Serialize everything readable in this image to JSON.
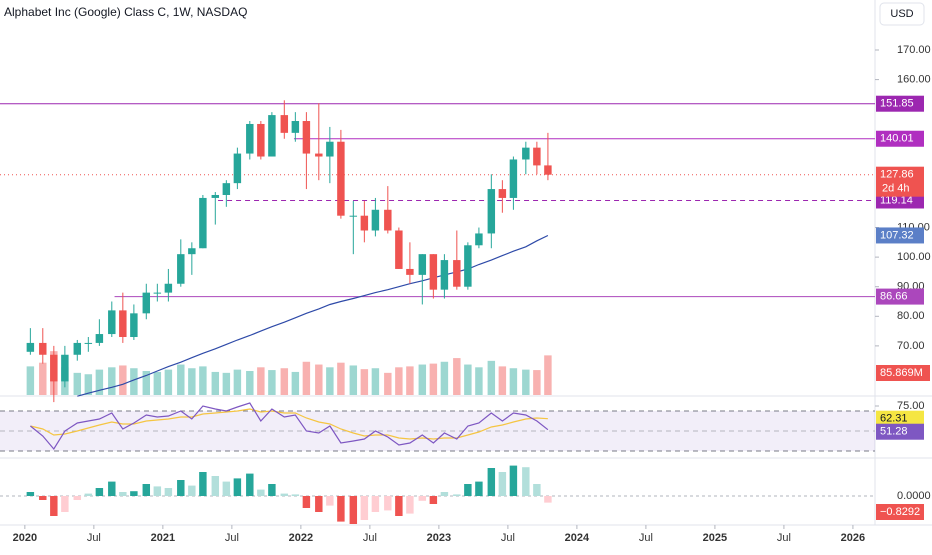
{
  "chart_data": {
    "type": "candlestick",
    "title": "Alphabet Inc (Google) Class C, 1W, NASDAQ",
    "currency": "USD",
    "x": [
      2020.04,
      2020.13,
      2020.21,
      2020.29,
      2020.38,
      2020.46,
      2020.54,
      2020.63,
      2020.71,
      2020.79,
      2020.88,
      2020.96,
      2021.04,
      2021.13,
      2021.21,
      2021.29,
      2021.38,
      2021.46,
      2021.54,
      2021.63,
      2021.71,
      2021.79,
      2021.88,
      2021.96,
      2022.04,
      2022.13,
      2022.21,
      2022.29,
      2022.38,
      2022.46,
      2022.54,
      2022.63,
      2022.71,
      2022.79,
      2022.88,
      2022.96,
      2023.04,
      2023.13,
      2023.21,
      2023.29,
      2023.38,
      2023.46,
      2023.54,
      2023.63,
      2023.71,
      2023.79
    ],
    "open": [
      68,
      71,
      67,
      58,
      67,
      71,
      71,
      74,
      82,
      73,
      81,
      88,
      88,
      91,
      101,
      103,
      120,
      121,
      125,
      135,
      145,
      134,
      148,
      142,
      146,
      135,
      134,
      139,
      114,
      114,
      109,
      116,
      109,
      96,
      94,
      101,
      89,
      99,
      90,
      104,
      108,
      123,
      120,
      133,
      137,
      131
    ],
    "high": [
      76,
      76,
      70,
      70,
      72,
      73,
      79,
      85,
      88,
      84,
      91,
      91,
      96,
      106,
      105,
      121,
      122,
      126,
      137,
      146,
      146,
      149,
      153,
      149,
      149,
      152,
      144,
      143,
      119,
      119,
      120,
      124,
      110,
      105,
      101,
      101,
      101,
      109,
      105,
      110,
      128,
      126,
      134,
      139,
      139,
      142
    ],
    "low": [
      67,
      64,
      51,
      56,
      65,
      68,
      70,
      73,
      71,
      72,
      79,
      85,
      85,
      90,
      94,
      103,
      111,
      117,
      123,
      133,
      133,
      134,
      140,
      139,
      123,
      126,
      125,
      113,
      101,
      105,
      107,
      108,
      96,
      91,
      84,
      86,
      86,
      89,
      89,
      103,
      103,
      115,
      116,
      128,
      128,
      126
    ],
    "close": [
      71,
      67,
      58,
      67,
      71,
      71,
      74,
      82,
      73,
      81,
      88,
      88,
      91,
      101,
      103,
      120,
      121,
      125,
      135,
      145,
      134,
      148,
      142,
      146,
      135,
      134,
      139,
      114,
      114,
      109,
      116,
      109,
      96,
      94,
      101,
      89,
      99,
      90,
      104,
      108,
      123,
      120,
      133,
      137,
      131,
      127.86
    ],
    "up_color": "#26a69a",
    "down_color": "#ef5350",
    "volume": [
      62,
      70,
      95,
      60,
      48,
      45,
      55,
      60,
      64,
      58,
      52,
      50,
      55,
      66,
      58,
      62,
      50,
      48,
      55,
      52,
      60,
      54,
      58,
      50,
      72,
      66,
      60,
      70,
      64,
      56,
      58,
      48,
      60,
      62,
      66,
      68,
      72,
      80,
      66,
      60,
      74,
      62,
      58,
      55,
      54,
      85.869
    ],
    "volume_label": "85.869M",
    "volume_ylim": [
      0,
      130
    ],
    "ma": [
      null,
      null,
      null,
      null,
      53,
      54,
      55,
      56,
      57,
      58.5,
      60,
      61.5,
      63,
      64.5,
      66,
      67.5,
      69,
      70.5,
      72,
      73.5,
      75,
      76.5,
      78,
      79.5,
      81,
      82.5,
      84,
      85,
      86,
      87,
      88,
      89,
      90,
      91,
      92,
      93,
      94,
      95,
      96,
      97.5,
      99,
      100.5,
      102,
      103.5,
      105.5,
      107.32
    ],
    "ma_color": "#2e4aa8",
    "countdown": "2d 4h",
    "levels": [
      {
        "value": 151.85,
        "from": 2019.82,
        "dashed": false,
        "color": "#9c27b0"
      },
      {
        "value": 140.01,
        "from": 2021.95,
        "dashed": false,
        "color": "#b02fc0"
      },
      {
        "value": 119.14,
        "from": 2021.4,
        "dashed": true,
        "color": "#9c27b0"
      },
      {
        "value": 86.66,
        "from": 2020.65,
        "dashed": false,
        "color": "#ab47bc"
      }
    ],
    "xlim": [
      2019.82,
      2026.16
    ],
    "xticks": [
      2020,
      {
        "value": 2020.5,
        "label": "Jul"
      },
      2021,
      {
        "value": 2021.5,
        "label": "Jul"
      },
      2022,
      {
        "value": 2022.5,
        "label": "Jul"
      },
      2023,
      {
        "value": 2023.5,
        "label": "Jul"
      },
      2024,
      {
        "value": 2024.5,
        "label": "Jul"
      },
      2025,
      {
        "value": 2025.5,
        "label": "Jul"
      },
      2026
    ],
    "ylim": [
      53.4,
      186.9
    ],
    "yticks": [
      {
        "value": 170,
        "label": "170.00"
      },
      {
        "value": 160,
        "label": "160.00"
      },
      {
        "value": 110,
        "label": "110.00"
      },
      {
        "value": 100,
        "label": "100.00"
      },
      {
        "value": 90,
        "label": "90.00"
      },
      {
        "value": 80,
        "label": "80.00"
      },
      {
        "value": 70,
        "label": "70.00"
      }
    ],
    "rsi": [
      55,
      45,
      32,
      50,
      58,
      60,
      62,
      68,
      52,
      58,
      66,
      64,
      65,
      70,
      62,
      75,
      72,
      70,
      74,
      78,
      60,
      72,
      64,
      66,
      50,
      48,
      55,
      38,
      40,
      42,
      50,
      44,
      36,
      38,
      46,
      38,
      48,
      42,
      55,
      58,
      68,
      60,
      68,
      66,
      60,
      51.28
    ],
    "rsi_signal": [
      55,
      52,
      46,
      47,
      50,
      53,
      56,
      59,
      57,
      57,
      60,
      61,
      62,
      64,
      64,
      67,
      68,
      69,
      70,
      72,
      69,
      70,
      68,
      68,
      63,
      59,
      57,
      52,
      48,
      45,
      46,
      46,
      43,
      42,
      43,
      42,
      43,
      43,
      46,
      49,
      54,
      56,
      59,
      62,
      63,
      62.31
    ],
    "rsi_ylim": [
      25,
      83
    ],
    "rsi_band": [
      30,
      70
    ],
    "rsi_mid": 50,
    "rsi_ticks": [
      {
        "value": 75,
        "label": "75.00"
      }
    ],
    "macd_hist": [
      0.5,
      -0.5,
      -2.5,
      -2,
      -0.5,
      0.3,
      1,
      1.8,
      0.5,
      0.6,
      1.5,
      1.2,
      1,
      2,
      1.3,
      3,
      2.5,
      1.8,
      2.2,
      2.8,
      0.8,
      1.5,
      0.3,
      0.2,
      -1.5,
      -2,
      -1.2,
      -3.2,
      -3.5,
      -3,
      -2,
      -1.8,
      -2.5,
      -2.2,
      -0.6,
      -1,
      0.5,
      0.2,
      1.5,
      1.8,
      3.5,
      3,
      3.8,
      3.6,
      1.5,
      -0.8292
    ],
    "macd_last_label": "−0.8292",
    "macd_ylim": [
      -4.5,
      4.5
    ],
    "macd_ticks": [
      {
        "value": 0,
        "label": "0.0000"
      }
    ]
  }
}
